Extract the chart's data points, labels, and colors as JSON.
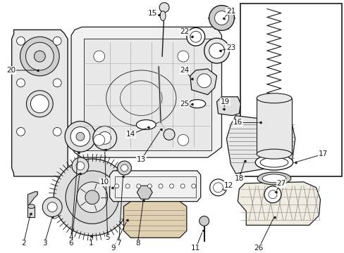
{
  "bg_color": "#ffffff",
  "line_color": "#1a1a1a",
  "text_color": "#1a1a1a",
  "fig_width": 4.89,
  "fig_height": 3.6,
  "dpi": 100
}
